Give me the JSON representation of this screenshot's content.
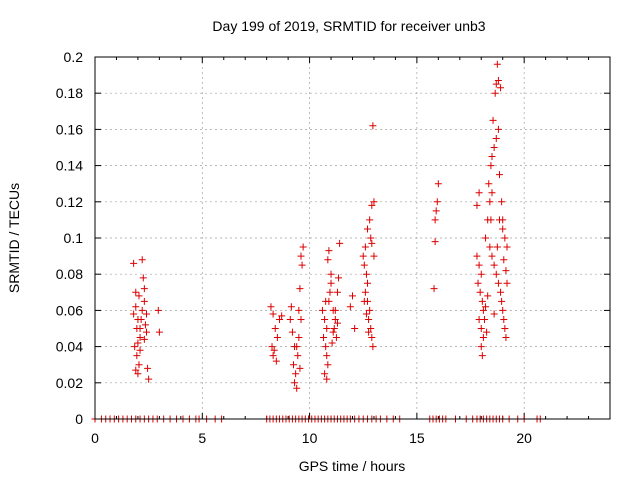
{
  "chart_data": {
    "type": "scatter",
    "title": "Day 199 of 2019, SRMTID for receiver unb3",
    "xlabel": "GPS time / hours",
    "ylabel": "SRMTID / TECUs",
    "xlim": [
      0,
      24
    ],
    "ylim": [
      0,
      0.2
    ],
    "x_ticks": [
      0,
      5,
      10,
      15,
      20
    ],
    "y_ticks": [
      0,
      0.02,
      0.04,
      0.06,
      0.08,
      0.1,
      0.12,
      0.14,
      0.16,
      0.18,
      0.2
    ],
    "x_tick_labels": [
      "0",
      "5",
      "10",
      "15",
      "20"
    ],
    "y_tick_labels": [
      "0",
      "0.02",
      "0.04",
      "0.06",
      "0.08",
      "0.1",
      "0.12",
      "0.14",
      "0.16",
      "0.18",
      "0.2"
    ],
    "grid": true,
    "marker": "+",
    "marker_color": "#dd0000",
    "series": [
      {
        "name": "SRMTID",
        "points": [
          [
            1.8,
            0.086
          ],
          [
            1.9,
            0.07
          ],
          [
            2.0,
            0.055
          ],
          [
            2.1,
            0.05
          ],
          [
            2.2,
            0.088
          ],
          [
            2.3,
            0.065
          ],
          [
            1.85,
            0.04
          ],
          [
            1.95,
            0.035
          ],
          [
            2.05,
            0.03
          ],
          [
            1.9,
            0.027
          ],
          [
            2.0,
            0.025
          ],
          [
            2.1,
            0.045
          ],
          [
            2.2,
            0.06
          ],
          [
            2.3,
            0.072
          ],
          [
            2.25,
            0.078
          ],
          [
            2.35,
            0.052
          ],
          [
            2.4,
            0.048
          ],
          [
            1.8,
            0.058
          ],
          [
            1.9,
            0.062
          ],
          [
            2.0,
            0.042
          ],
          [
            2.1,
            0.038
          ],
          [
            2.15,
            0.055
          ],
          [
            2.45,
            0.028
          ],
          [
            2.5,
            0.022
          ],
          [
            2.4,
            0.058
          ],
          [
            2.3,
            0.044
          ],
          [
            2.95,
            0.06
          ],
          [
            3.0,
            0.048
          ],
          [
            2.05,
            0.068
          ],
          [
            1.95,
            0.05
          ],
          [
            8.2,
            0.062
          ],
          [
            8.3,
            0.058
          ],
          [
            8.4,
            0.05
          ],
          [
            8.25,
            0.04
          ],
          [
            8.35,
            0.038
          ],
          [
            8.5,
            0.045
          ],
          [
            8.6,
            0.055
          ],
          [
            8.7,
            0.057
          ],
          [
            8.3,
            0.035
          ],
          [
            8.45,
            0.032
          ],
          [
            9.1,
            0.055
          ],
          [
            9.2,
            0.048
          ],
          [
            9.3,
            0.04
          ],
          [
            9.25,
            0.03
          ],
          [
            9.35,
            0.025
          ],
          [
            9.3,
            0.02
          ],
          [
            9.4,
            0.017
          ],
          [
            9.5,
            0.06
          ],
          [
            9.6,
            0.055
          ],
          [
            9.55,
            0.072
          ],
          [
            9.65,
            0.085
          ],
          [
            9.7,
            0.095
          ],
          [
            9.6,
            0.09
          ],
          [
            9.5,
            0.045
          ],
          [
            9.4,
            0.04
          ],
          [
            9.15,
            0.062
          ],
          [
            9.45,
            0.035
          ],
          [
            9.55,
            0.028
          ],
          [
            10.6,
            0.06
          ],
          [
            10.7,
            0.055
          ],
          [
            10.8,
            0.05
          ],
          [
            10.65,
            0.045
          ],
          [
            10.75,
            0.04
          ],
          [
            10.8,
            0.035
          ],
          [
            10.85,
            0.03
          ],
          [
            10.7,
            0.025
          ],
          [
            10.8,
            0.022
          ],
          [
            10.9,
            0.065
          ],
          [
            10.95,
            0.07
          ],
          [
            11.0,
            0.08
          ],
          [
            10.85,
            0.088
          ],
          [
            10.9,
            0.093
          ],
          [
            11.0,
            0.075
          ],
          [
            11.1,
            0.06
          ],
          [
            11.2,
            0.055
          ],
          [
            11.15,
            0.05
          ],
          [
            11.25,
            0.045
          ],
          [
            11.3,
            0.07
          ],
          [
            11.35,
            0.078
          ],
          [
            11.4,
            0.097
          ],
          [
            11.2,
            0.06
          ],
          [
            11.1,
            0.048
          ],
          [
            11.05,
            0.042
          ],
          [
            10.75,
            0.065
          ],
          [
            11.3,
            0.053
          ],
          [
            11.9,
            0.062
          ],
          [
            12.0,
            0.068
          ],
          [
            12.1,
            0.05
          ],
          [
            12.5,
            0.09
          ],
          [
            12.6,
            0.095
          ],
          [
            12.55,
            0.085
          ],
          [
            12.65,
            0.08
          ],
          [
            12.7,
            0.075
          ],
          [
            12.6,
            0.07
          ],
          [
            12.7,
            0.065
          ],
          [
            12.8,
            0.06
          ],
          [
            12.75,
            0.055
          ],
          [
            12.85,
            0.05
          ],
          [
            12.9,
            0.045
          ],
          [
            12.95,
            0.04
          ],
          [
            12.8,
            0.11
          ],
          [
            12.9,
            0.118
          ],
          [
            13.0,
            0.12
          ],
          [
            12.85,
            0.1
          ],
          [
            12.9,
            0.097
          ],
          [
            13.0,
            0.09
          ],
          [
            12.95,
            0.162
          ],
          [
            12.7,
            0.105
          ],
          [
            12.55,
            0.065
          ],
          [
            12.65,
            0.058
          ],
          [
            12.75,
            0.048
          ],
          [
            15.8,
            0.072
          ],
          [
            15.85,
            0.098
          ],
          [
            15.9,
            0.115
          ],
          [
            15.95,
            0.12
          ],
          [
            16.0,
            0.13
          ],
          [
            15.85,
            0.11
          ],
          [
            17.8,
            0.09
          ],
          [
            17.9,
            0.085
          ],
          [
            18.0,
            0.08
          ],
          [
            17.85,
            0.075
          ],
          [
            17.95,
            0.07
          ],
          [
            18.05,
            0.065
          ],
          [
            18.1,
            0.06
          ],
          [
            17.9,
            0.055
          ],
          [
            18.0,
            0.05
          ],
          [
            18.1,
            0.045
          ],
          [
            18.0,
            0.04
          ],
          [
            18.05,
            0.035
          ],
          [
            18.2,
            0.1
          ],
          [
            18.3,
            0.11
          ],
          [
            18.4,
            0.12
          ],
          [
            18.5,
            0.125
          ],
          [
            18.35,
            0.13
          ],
          [
            18.45,
            0.14
          ],
          [
            18.5,
            0.145
          ],
          [
            18.6,
            0.15
          ],
          [
            18.7,
            0.155
          ],
          [
            18.8,
            0.16
          ],
          [
            18.65,
            0.18
          ],
          [
            18.7,
            0.185
          ],
          [
            18.8,
            0.187
          ],
          [
            18.75,
            0.196
          ],
          [
            18.9,
            0.183
          ],
          [
            18.55,
            0.165
          ],
          [
            18.4,
            0.095
          ],
          [
            18.5,
            0.09
          ],
          [
            18.6,
            0.085
          ],
          [
            18.7,
            0.08
          ],
          [
            18.8,
            0.075
          ],
          [
            18.9,
            0.07
          ],
          [
            18.95,
            0.065
          ],
          [
            19.0,
            0.06
          ],
          [
            19.05,
            0.055
          ],
          [
            19.1,
            0.05
          ],
          [
            19.15,
            0.045
          ],
          [
            19.1,
            0.1
          ],
          [
            19.0,
            0.105
          ],
          [
            18.85,
            0.11
          ],
          [
            18.95,
            0.12
          ],
          [
            19.05,
            0.088
          ],
          [
            19.15,
            0.082
          ],
          [
            19.2,
            0.075
          ],
          [
            18.3,
            0.068
          ],
          [
            18.2,
            0.062
          ],
          [
            18.15,
            0.055
          ],
          [
            18.25,
            0.048
          ],
          [
            17.8,
            0.118
          ],
          [
            17.9,
            0.125
          ],
          [
            18.6,
            0.058
          ],
          [
            18.75,
            0.095
          ],
          [
            18.85,
            0.135
          ],
          [
            18.45,
            0.11
          ],
          [
            19.0,
            0.11
          ],
          [
            19.2,
            0.095
          ]
        ],
        "zero_band": [
          [
            0.0,
            0.0
          ],
          [
            0.3,
            0.0
          ],
          [
            0.5,
            0.0
          ],
          [
            0.7,
            0.0
          ],
          [
            0.9,
            0.0
          ],
          [
            1.1,
            0.0
          ],
          [
            1.3,
            0.0
          ],
          [
            1.5,
            0.0
          ],
          [
            1.7,
            0.0
          ],
          [
            1.9,
            0.0
          ],
          [
            2.1,
            0.0
          ],
          [
            2.3,
            0.0
          ],
          [
            2.5,
            0.0
          ],
          [
            2.7,
            0.0
          ],
          [
            2.9,
            0.0
          ],
          [
            3.2,
            0.0
          ],
          [
            3.5,
            0.0
          ],
          [
            3.8,
            0.0
          ],
          [
            4.1,
            0.0
          ],
          [
            4.4,
            0.0
          ],
          [
            4.7,
            0.0
          ],
          [
            4.85,
            0.0
          ],
          [
            5.2,
            0.0
          ],
          [
            5.6,
            0.0
          ],
          [
            5.9,
            0.0
          ],
          [
            8.0,
            0.0
          ],
          [
            8.15,
            0.0
          ],
          [
            8.3,
            0.0
          ],
          [
            8.45,
            0.0
          ],
          [
            8.6,
            0.0
          ],
          [
            8.75,
            0.0
          ],
          [
            8.9,
            0.0
          ],
          [
            9.05,
            0.0
          ],
          [
            9.2,
            0.0
          ],
          [
            9.35,
            0.0
          ],
          [
            9.5,
            0.0
          ],
          [
            9.65,
            0.0
          ],
          [
            9.8,
            0.0
          ],
          [
            9.95,
            0.0
          ],
          [
            10.1,
            0.0
          ],
          [
            10.25,
            0.0
          ],
          [
            10.4,
            0.0
          ],
          [
            10.55,
            0.0
          ],
          [
            10.7,
            0.0
          ],
          [
            10.85,
            0.0
          ],
          [
            11.0,
            0.0
          ],
          [
            11.15,
            0.0
          ],
          [
            11.3,
            0.0
          ],
          [
            11.45,
            0.0
          ],
          [
            11.6,
            0.0
          ],
          [
            11.75,
            0.0
          ],
          [
            11.9,
            0.0
          ],
          [
            12.1,
            0.0
          ],
          [
            12.3,
            0.0
          ],
          [
            12.5,
            0.0
          ],
          [
            12.7,
            0.0
          ],
          [
            12.9,
            0.0
          ],
          [
            13.1,
            0.0
          ],
          [
            13.3,
            0.0
          ],
          [
            13.6,
            0.0
          ],
          [
            13.9,
            0.0
          ],
          [
            14.2,
            0.0
          ],
          [
            15.6,
            0.0
          ],
          [
            15.75,
            0.0
          ],
          [
            15.9,
            0.0
          ],
          [
            16.05,
            0.0
          ],
          [
            16.2,
            0.0
          ],
          [
            16.35,
            0.0
          ],
          [
            16.8,
            0.0
          ],
          [
            17.3,
            0.0
          ],
          [
            17.6,
            0.0
          ],
          [
            17.8,
            0.0
          ],
          [
            17.95,
            0.0
          ],
          [
            18.1,
            0.0
          ],
          [
            18.25,
            0.0
          ],
          [
            18.4,
            0.0
          ],
          [
            18.55,
            0.0
          ],
          [
            18.7,
            0.0
          ],
          [
            18.85,
            0.0
          ],
          [
            19.0,
            0.0
          ],
          [
            19.3,
            0.0
          ],
          [
            19.7,
            0.0
          ],
          [
            20.0,
            0.0
          ],
          [
            20.6,
            0.0
          ],
          [
            20.75,
            0.0
          ]
        ]
      }
    ]
  }
}
